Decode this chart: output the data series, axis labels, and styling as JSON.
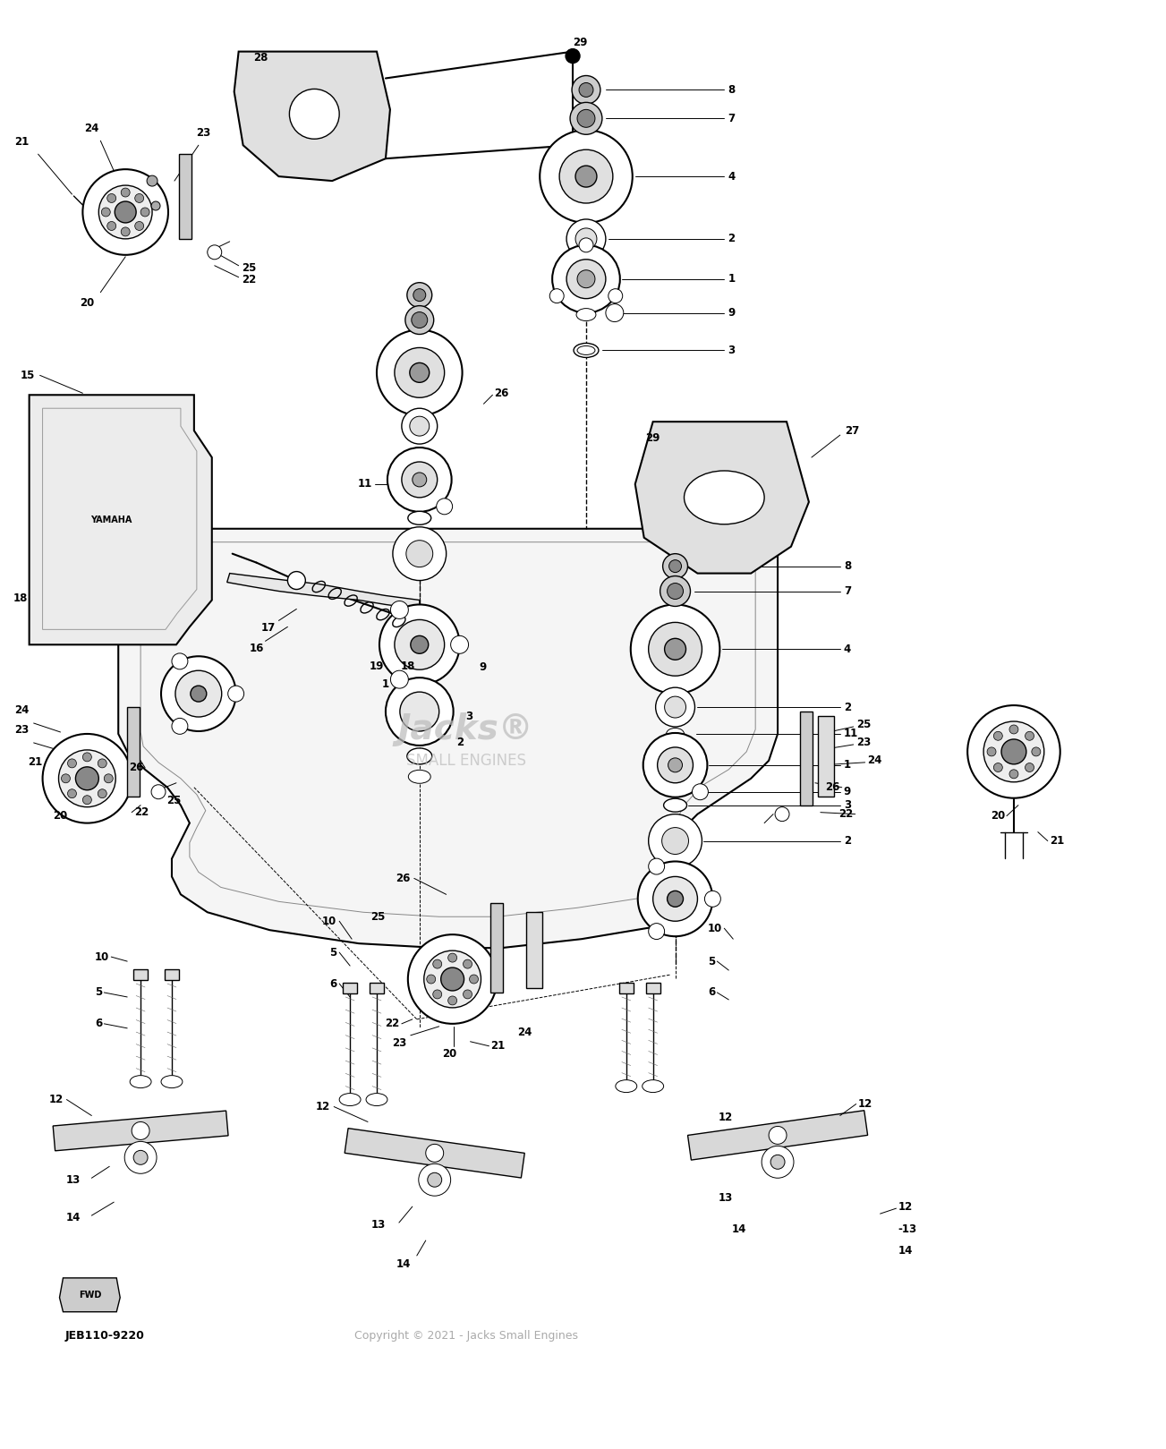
{
  "bg_color": "#ffffff",
  "watermark_color": "#bbbbbb",
  "copyright_color": "#aaaaaa",
  "part_id_text": "JEB110-9220",
  "copyright_text": "Copyright © 2021 - Jacks Small Engines",
  "figsize": [
    13.03,
    16.19
  ],
  "dpi": 100
}
